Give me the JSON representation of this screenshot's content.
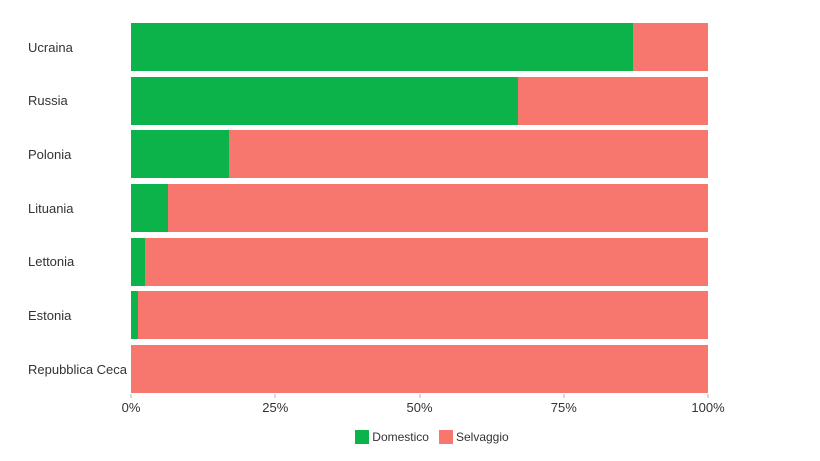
{
  "chart_data": {
    "type": "bar",
    "orientation": "horizontal",
    "stacked": true,
    "title": "",
    "xlabel": "",
    "ylabel": "",
    "xlim": [
      0,
      100
    ],
    "grid": false,
    "legend_position": "bottom-center",
    "categories": [
      "Ucraina",
      "Russia",
      "Polonia",
      "Lituania",
      "Lettonia",
      "Estonia",
      "Repubblica Ceca"
    ],
    "series": [
      {
        "name": "Domestico",
        "color": "#0cb24a",
        "values": [
          87,
          67,
          17,
          6.4,
          2.4,
          1.2,
          0
        ]
      },
      {
        "name": "Selvaggio",
        "color": "#f7766e",
        "values": [
          13,
          33,
          83,
          93.6,
          97.6,
          98.8,
          100
        ]
      }
    ],
    "x_ticks": [
      {
        "label": "0%",
        "value": 0
      },
      {
        "label": "25%",
        "value": 25
      },
      {
        "label": "50%",
        "value": 50
      },
      {
        "label": "75%",
        "value": 75
      },
      {
        "label": "100%",
        "value": 100
      }
    ]
  },
  "legend": {
    "items": [
      {
        "label": "Domestico",
        "color": "#0cb24a"
      },
      {
        "label": "Selvaggio",
        "color": "#f7766e"
      }
    ]
  },
  "colors": {
    "background": "#ffffff",
    "text": "#333333",
    "tick_mark": "#b5b5b5"
  }
}
